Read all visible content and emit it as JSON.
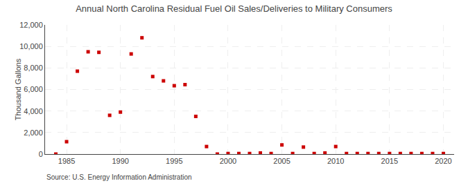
{
  "chart_data": {
    "type": "scatter",
    "title": "Annual North Carolina Residual Fuel Oil Sales/Deliveries to Military Consumers",
    "ylabel": "Thousand Gallons",
    "annotations": [
      "Source: U.S. Energy Information Administration"
    ],
    "x": [
      1984,
      1985,
      1986,
      1987,
      1988,
      1989,
      1990,
      1991,
      1992,
      1993,
      1994,
      1995,
      1996,
      1997,
      1998,
      1999,
      2000,
      2001,
      2002,
      2003,
      2004,
      2005,
      2006,
      2007,
      2008,
      2009,
      2010,
      2011,
      2012,
      2013,
      2014,
      2015,
      2016,
      2017,
      2018,
      2019,
      2020
    ],
    "values": [
      0,
      1150,
      7700,
      9500,
      9450,
      3600,
      3900,
      9300,
      10800,
      7200,
      6800,
      6350,
      6450,
      3500,
      700,
      0,
      50,
      50,
      50,
      100,
      50,
      850,
      50,
      650,
      50,
      100,
      700,
      50,
      50,
      50,
      50,
      50,
      50,
      50,
      50,
      50,
      50
    ],
    "color": "#cc0000",
    "marker": "square",
    "xlim": [
      1983,
      2021
    ],
    "xticks": [
      1985,
      1990,
      1995,
      2000,
      2005,
      2010,
      2015,
      2020
    ],
    "ylim": [
      0,
      12000
    ],
    "yticks": [
      0,
      {
        "value": 2000,
        "label": "2,000"
      },
      {
        "value": 4000,
        "label": "4,000"
      },
      {
        "value": 6000,
        "label": "6,000"
      },
      {
        "value": 8000,
        "label": "8,000"
      },
      {
        "value": 10000,
        "label": "10,000"
      },
      {
        "value": 12000,
        "label": "12,000"
      }
    ],
    "grid": true
  }
}
